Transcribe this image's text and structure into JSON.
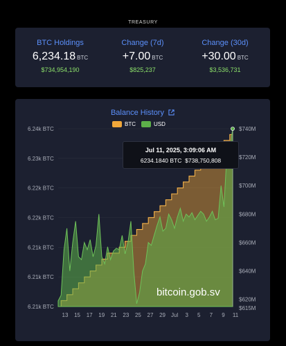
{
  "header": {
    "label": "TREASURY"
  },
  "stats": [
    {
      "title": "BTC Holdings",
      "value": "6,234.18",
      "unit": "BTC",
      "usd": "$734,954,190"
    },
    {
      "title": "Change (7d)",
      "value": "+7.00",
      "unit": "BTC",
      "usd": "$825,237"
    },
    {
      "title": "Change (30d)",
      "value": "+30.00",
      "unit": "BTC",
      "usd": "$3,536,731"
    }
  ],
  "chart": {
    "title": "Balance History",
    "title_icon": "external-link-icon",
    "legend": [
      "BTC",
      "USD"
    ],
    "tooltip": {
      "date": "Jul 11, 2025, 3:09:06 AM",
      "btc": "6234.1840 BTC",
      "usd": "$738,750,808"
    },
    "watermark": "bitcoin.gob.sv"
  },
  "colors": {
    "btc": "#f0a73a",
    "usd": "#5db04a",
    "accent": "#5b8ff9",
    "positive": "#8ce06a"
  },
  "chart_data": {
    "type": "area",
    "x_ticks": [
      "13",
      "15",
      "17",
      "19",
      "21",
      "23",
      "25",
      "27",
      "29",
      "Jul",
      "3",
      "5",
      "7",
      "9",
      "11"
    ],
    "y_left_ticks": [
      "6.24k BTC",
      "6.23k BTC",
      "6.22k BTC",
      "6.22k BTC",
      "6.21k BTC",
      "6.21k BTC",
      "6.21k BTC"
    ],
    "y_right_ticks": [
      "$740M",
      "$720M",
      "$700M",
      "$680M",
      "$660M",
      "$640M",
      "$620M",
      "$615M"
    ],
    "y_left_range": [
      6204.2,
      6234.18
    ],
    "y_right_range": [
      615,
      740
    ],
    "series": [
      {
        "name": "BTC",
        "unit": "BTC",
        "values": [
          6204.2,
          6205.2,
          6205.2,
          6206.2,
          6206.2,
          6207.2,
          6207.2,
          6208.2,
          6208.2,
          6209.2,
          6209.2,
          6210.2,
          6210.2,
          6211.2,
          6211.2,
          6212.2,
          6212.2,
          6213.2,
          6213.2,
          6213.2,
          6213.2,
          6214.2,
          6214.2,
          6215.2,
          6215.2,
          6216.2,
          6216.2,
          6217.2,
          6217.2,
          6218.2,
          6218.2,
          6219.2,
          6219.2,
          6220.2,
          6220.2,
          6221.2,
          6221.2,
          6222.2,
          6222.2,
          6223.2,
          6223.2,
          6224.2,
          6224.2,
          6225.2,
          6225.2,
          6226.2,
          6226.2,
          6227.2,
          6227.2,
          6228.2,
          6228.2,
          6229.2,
          6229.2,
          6230.2,
          6230.2,
          6231.2,
          6231.2,
          6232.2,
          6232.2,
          6233.2,
          6234.18
        ]
      },
      {
        "name": "USD",
        "unit": "$M",
        "values": [
          619,
          623,
          655,
          670,
          640,
          660,
          675,
          650,
          648,
          660,
          655,
          662,
          650,
          658,
          680,
          650,
          645,
          657,
          648,
          654,
          656,
          655,
          665,
          652,
          660,
          675,
          640,
          617,
          625,
          640,
          645,
          660,
          658,
          665,
          672,
          678,
          668,
          670,
          680,
          676,
          670,
          678,
          684,
          675,
          680,
          678,
          681,
          676,
          679,
          682,
          680,
          675,
          678,
          682,
          676,
          677,
          700,
          685,
          722,
          725,
          740
        ]
      }
    ]
  }
}
